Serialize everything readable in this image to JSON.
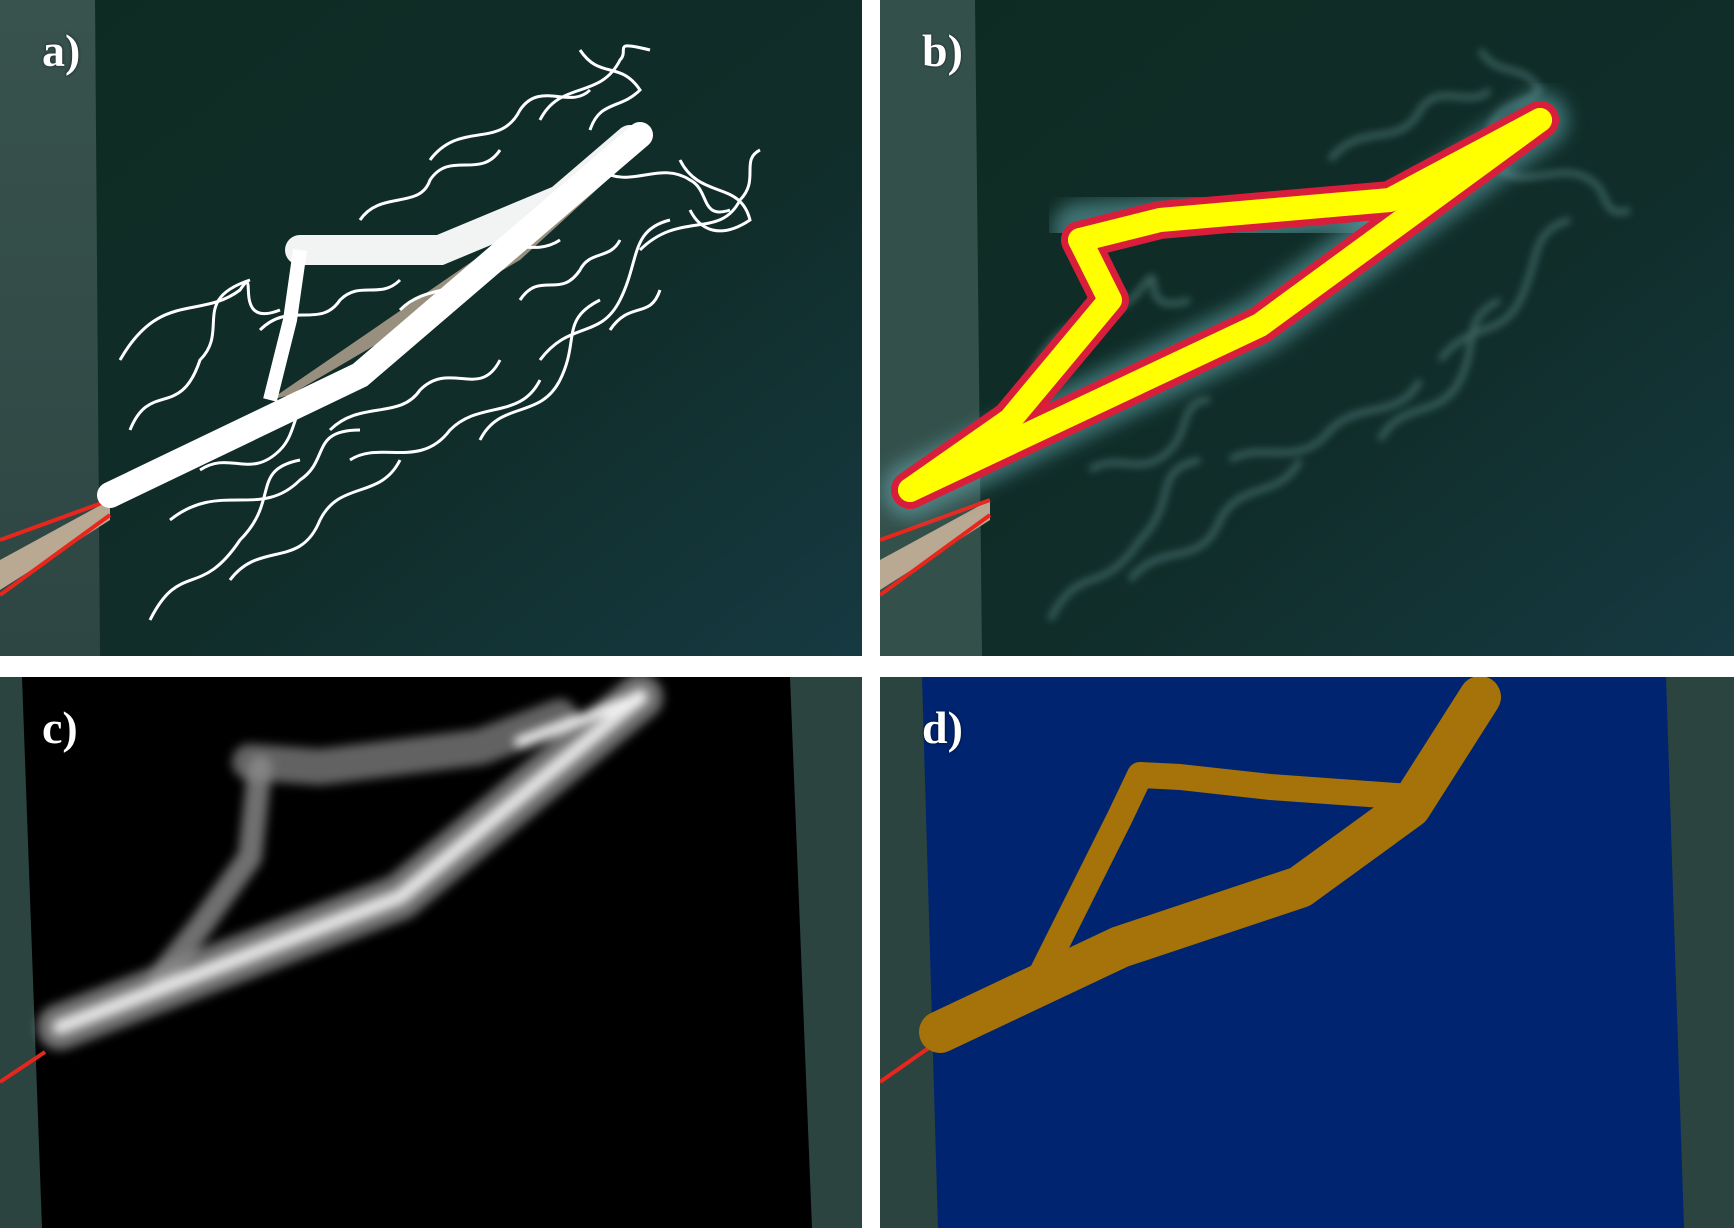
{
  "figure": {
    "panels": [
      {
        "label": "a)",
        "content": "satellite-image-with-trajectory-points"
      },
      {
        "label": "b)",
        "content": "satellite-image-with-density-heatmap"
      },
      {
        "label": "c)",
        "content": "grayscale-density-raster"
      },
      {
        "label": "d)",
        "content": "classified-raster-mask"
      }
    ]
  },
  "colors": {
    "water_dark": "#0f2a22",
    "water_blue": "#123238",
    "land_gray": "#2e4843",
    "track_white": "#ffffff",
    "heat_yellow": "#ffff00",
    "heat_red": "#d81e3a",
    "boundary_red": "#e8261c",
    "sand": "#b9a892",
    "raster_black": "#000000",
    "mask_blue": "#002470",
    "mask_brown": "#a5730a"
  }
}
